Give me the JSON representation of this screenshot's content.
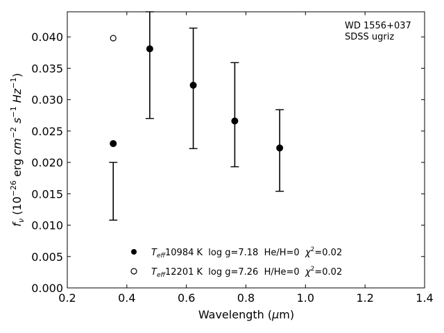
{
  "chart_data": {
    "type": "scatter",
    "annotation": [
      "WD 1556+037",
      "SDSS ugriz"
    ],
    "xlabel": "Wavelength (μm)",
    "ylabel": "fν (10⁻²⁶ erg cm⁻² s⁻¹ Hz⁻¹)",
    "xlim": [
      0.2,
      1.4
    ],
    "ylim": [
      0.0,
      0.044
    ],
    "xticks": [
      "0.2",
      "0.4",
      "0.6",
      "0.8",
      "1.0",
      "1.2",
      "1.4"
    ],
    "yticks": [
      "0.000",
      "0.005",
      "0.010",
      "0.015",
      "0.020",
      "0.025",
      "0.030",
      "0.035",
      "0.040"
    ],
    "xtick_values": [
      0.2,
      0.4,
      0.6,
      0.8,
      1.0,
      1.2,
      1.4
    ],
    "ytick_values": [
      0.0,
      0.005,
      0.01,
      0.015,
      0.02,
      0.025,
      0.03,
      0.035,
      0.04
    ],
    "legend_position": "bottom-center",
    "observed": {
      "x": [
        0.3543,
        0.477,
        0.6231,
        0.7625,
        0.9134
      ],
      "y": [
        0.0154,
        0.04,
        0.0318,
        0.0276,
        0.0219
      ],
      "yerr_low": [
        0.0046,
        0.013,
        0.0096,
        0.0083,
        0.0065
      ],
      "yerr_high": [
        0.0046,
        0.004,
        0.0096,
        0.0083,
        0.0065
      ]
    },
    "series": [
      {
        "name": "T_eff= 10984 K  log g=7.18  He/H=0  χ²=0.02",
        "marker": "filled-circle",
        "x": [
          0.3543,
          0.477,
          0.6231,
          0.7625,
          0.9134
        ],
        "y": [
          0.023,
          0.0381,
          0.0323,
          0.0266,
          0.0223
        ]
      },
      {
        "name": "T_eff= 12201 K  log g=7.26  H/He=0  χ²=0.02",
        "marker": "open-circle",
        "x": [
          0.3543
        ],
        "y": [
          0.0398
        ]
      }
    ],
    "legend": [
      {
        "teff": "10984 K",
        "rest": "  log g=7.18  He/H=0  ",
        "chi": "=0.02"
      },
      {
        "teff": "12201 K",
        "rest": "  log g=7.26  H/He=0  ",
        "chi": "=0.02"
      }
    ]
  }
}
